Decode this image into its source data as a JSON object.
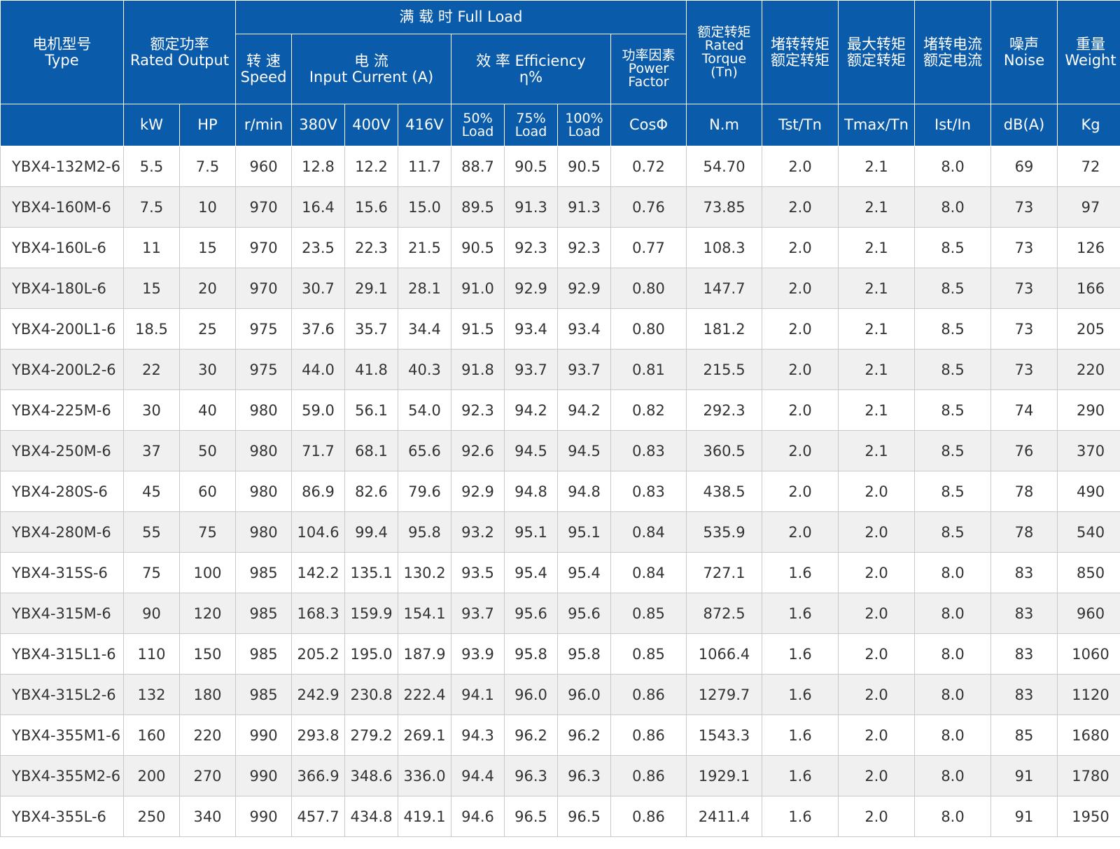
{
  "colors": {
    "header_bg": "#0b5bab",
    "header_text": "#ffffff",
    "row_alt": "#f0f0f0",
    "grid": "#c9c9c9"
  },
  "header": {
    "type": [
      "电机型号",
      "Type"
    ],
    "rated_output": [
      "额定功率",
      "Rated Output"
    ],
    "full_load": "满 载 时  Full Load",
    "speed": [
      "转 速",
      "Speed"
    ],
    "current": [
      "电 流",
      "Input Current (A)"
    ],
    "efficiency": [
      "效 率 Efficiency",
      "η%"
    ],
    "power_factor": [
      "功率因素",
      "Power",
      "Factor"
    ],
    "rated_torque": [
      "额定转矩",
      "Rated",
      "Torque",
      "(Tn)"
    ],
    "locked_torque": [
      "堵转转矩",
      "额定转矩"
    ],
    "max_torque": [
      "最大转矩",
      "额定转矩"
    ],
    "locked_current": [
      "堵转电流",
      "额定电流"
    ],
    "noise": [
      "噪声",
      "Noise"
    ],
    "weight": [
      "重量",
      "Weight"
    ]
  },
  "units": {
    "kw": "kW",
    "hp": "HP",
    "speed": "r/min",
    "v380": "380V",
    "v400": "400V",
    "v416": "416V",
    "load50": [
      "50%",
      "Load"
    ],
    "load75": [
      "75%",
      "Load"
    ],
    "load100": [
      "100%",
      "Load"
    ],
    "cos": "CosΦ",
    "nm": "N.m",
    "tst": "Tst/Tn",
    "tmax": "Tmax/Tn",
    "ist": "Ist/In",
    "db": "dB(A)",
    "kg": "Kg"
  },
  "rows": [
    [
      "YBX4-132M2-6",
      "5.5",
      "7.5",
      "960",
      "12.8",
      "12.2",
      "11.7",
      "88.7",
      "90.5",
      "90.5",
      "0.72",
      "54.70",
      "2.0",
      "2.1",
      "8.0",
      "69",
      "72"
    ],
    [
      "YBX4-160M-6",
      "7.5",
      "10",
      "970",
      "16.4",
      "15.6",
      "15.0",
      "89.5",
      "91.3",
      "91.3",
      "0.76",
      "73.85",
      "2.0",
      "2.1",
      "8.0",
      "73",
      "97"
    ],
    [
      "YBX4-160L-6",
      "11",
      "15",
      "970",
      "23.5",
      "22.3",
      "21.5",
      "90.5",
      "92.3",
      "92.3",
      "0.77",
      "108.3",
      "2.0",
      "2.1",
      "8.5",
      "73",
      "126"
    ],
    [
      "YBX4-180L-6",
      "15",
      "20",
      "970",
      "30.7",
      "29.1",
      "28.1",
      "91.0",
      "92.9",
      "92.9",
      "0.80",
      "147.7",
      "2.0",
      "2.1",
      "8.5",
      "73",
      "166"
    ],
    [
      "YBX4-200L1-6",
      "18.5",
      "25",
      "975",
      "37.6",
      "35.7",
      "34.4",
      "91.5",
      "93.4",
      "93.4",
      "0.80",
      "181.2",
      "2.0",
      "2.1",
      "8.5",
      "73",
      "205"
    ],
    [
      "YBX4-200L2-6",
      "22",
      "30",
      "975",
      "44.0",
      "41.8",
      "40.3",
      "91.8",
      "93.7",
      "93.7",
      "0.81",
      "215.5",
      "2.0",
      "2.1",
      "8.5",
      "73",
      "220"
    ],
    [
      "YBX4-225M-6",
      "30",
      "40",
      "980",
      "59.0",
      "56.1",
      "54.0",
      "92.3",
      "94.2",
      "94.2",
      "0.82",
      "292.3",
      "2.0",
      "2.1",
      "8.5",
      "74",
      "290"
    ],
    [
      "YBX4-250M-6",
      "37",
      "50",
      "980",
      "71.7",
      "68.1",
      "65.6",
      "92.6",
      "94.5",
      "94.5",
      "0.83",
      "360.5",
      "2.0",
      "2.1",
      "8.5",
      "76",
      "370"
    ],
    [
      "YBX4-280S-6",
      "45",
      "60",
      "980",
      "86.9",
      "82.6",
      "79.6",
      "92.9",
      "94.8",
      "94.8",
      "0.83",
      "438.5",
      "2.0",
      "2.0",
      "8.5",
      "78",
      "490"
    ],
    [
      "YBX4-280M-6",
      "55",
      "75",
      "980",
      "104.6",
      "99.4",
      "95.8",
      "93.2",
      "95.1",
      "95.1",
      "0.84",
      "535.9",
      "2.0",
      "2.0",
      "8.5",
      "78",
      "540"
    ],
    [
      "YBX4-315S-6",
      "75",
      "100",
      "985",
      "142.2",
      "135.1",
      "130.2",
      "93.5",
      "95.4",
      "95.4",
      "0.84",
      "727.1",
      "1.6",
      "2.0",
      "8.0",
      "83",
      "850"
    ],
    [
      "YBX4-315M-6",
      "90",
      "120",
      "985",
      "168.3",
      "159.9",
      "154.1",
      "93.7",
      "95.6",
      "95.6",
      "0.85",
      "872.5",
      "1.6",
      "2.0",
      "8.0",
      "83",
      "960"
    ],
    [
      "YBX4-315L1-6",
      "110",
      "150",
      "985",
      "205.2",
      "195.0",
      "187.9",
      "93.9",
      "95.8",
      "95.8",
      "0.85",
      "1066.4",
      "1.6",
      "2.0",
      "8.0",
      "83",
      "1060"
    ],
    [
      "YBX4-315L2-6",
      "132",
      "180",
      "985",
      "242.9",
      "230.8",
      "222.4",
      "94.1",
      "96.0",
      "96.0",
      "0.86",
      "1279.7",
      "1.6",
      "2.0",
      "8.0",
      "83",
      "1120"
    ],
    [
      "YBX4-355M1-6",
      "160",
      "220",
      "990",
      "293.8",
      "279.2",
      "269.1",
      "94.3",
      "96.2",
      "96.2",
      "0.86",
      "1543.3",
      "1.6",
      "2.0",
      "8.0",
      "85",
      "1680"
    ],
    [
      "YBX4-355M2-6",
      "200",
      "270",
      "990",
      "366.9",
      "348.6",
      "336.0",
      "94.4",
      "96.3",
      "96.3",
      "0.86",
      "1929.1",
      "1.6",
      "2.0",
      "8.0",
      "91",
      "1780"
    ],
    [
      "YBX4-355L-6",
      "250",
      "340",
      "990",
      "457.7",
      "434.8",
      "419.1",
      "94.6",
      "96.5",
      "96.5",
      "0.86",
      "2411.4",
      "1.6",
      "2.0",
      "8.0",
      "91",
      "1950"
    ]
  ]
}
